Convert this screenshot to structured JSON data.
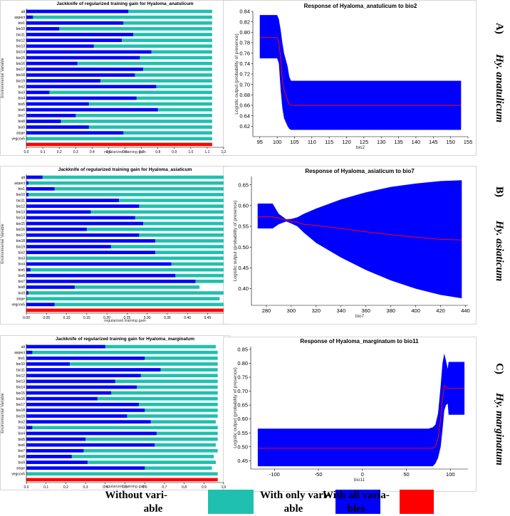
{
  "chart_data": [
    {
      "type": "bar",
      "title": "Jackknife of regularized training gain for Hyaloma_anatulicum",
      "xlabel": "regularized training gain",
      "ylabel": "Environmental Variable",
      "xlim": [
        0,
        1.2
      ],
      "xticks": [
        "0.0",
        "0.1",
        "0.2",
        "0.3",
        "0.4",
        "0.5",
        "0.6",
        "0.7",
        "0.8",
        "0.9",
        "1.0",
        "1.1",
        "1.2"
      ],
      "categories": [
        "alt",
        "aspect",
        "bio1",
        "bio10",
        "bio11",
        "bio12",
        "bio13",
        "bio14",
        "bio15",
        "bio16",
        "bio17",
        "bio18",
        "bio19",
        "bio2",
        "bio3",
        "bio4",
        "bio5",
        "bio6",
        "bio7",
        "bio8",
        "bio9",
        "slope",
        "vegcov5"
      ],
      "series": [
        {
          "name": "Without variable",
          "color": "#20c0b0",
          "values": [
            1.13,
            1.13,
            1.13,
            1.13,
            1.13,
            1.13,
            1.13,
            1.13,
            1.13,
            1.13,
            1.13,
            1.13,
            1.13,
            1.13,
            1.13,
            1.13,
            1.13,
            1.13,
            1.13,
            1.13,
            1.13,
            1.13,
            1.13
          ]
        },
        {
          "name": "With only variable",
          "color": "#0000ff",
          "values": [
            0.62,
            0.04,
            0.59,
            0.2,
            0.65,
            0.58,
            0.41,
            0.76,
            0.69,
            0.31,
            0.71,
            0.66,
            0.45,
            0.79,
            0.14,
            0.67,
            0.38,
            0.8,
            0.3,
            0.21,
            0.38,
            0.59,
            0.0
          ]
        },
        {
          "name": "With all variables",
          "color": "#ff0000",
          "value": 1.13
        }
      ]
    },
    {
      "type": "line",
      "title": "Response of Hyaloma_anatulicum to bio2",
      "xlabel": "bio2",
      "ylabel": "Logistic output (probability of presence)",
      "xlim": [
        93,
        155
      ],
      "ylim": [
        0.6,
        0.84
      ],
      "xticks": [
        "95",
        "100",
        "105",
        "110",
        "115",
        "120",
        "125",
        "130",
        "135",
        "140",
        "145",
        "150",
        "155"
      ],
      "yticks": [
        "0.62",
        "0.64",
        "0.66",
        "0.68",
        "0.70",
        "0.72",
        "0.74",
        "0.76",
        "0.78",
        "0.80",
        "0.82",
        "0.84"
      ],
      "x": [
        95,
        97,
        99,
        100,
        100.5,
        101,
        101.5,
        102,
        103,
        103.5,
        104,
        110,
        120,
        130,
        140,
        150,
        153
      ],
      "mean": [
        0.79,
        0.79,
        0.79,
        0.79,
        0.78,
        0.75,
        0.71,
        0.69,
        0.67,
        0.662,
        0.66,
        0.66,
        0.66,
        0.66,
        0.66,
        0.66,
        0.66
      ],
      "upper": [
        0.833,
        0.833,
        0.833,
        0.833,
        0.825,
        0.805,
        0.78,
        0.76,
        0.735,
        0.715,
        0.707,
        0.707,
        0.707,
        0.707,
        0.707,
        0.707,
        0.707
      ],
      "lower": [
        0.75,
        0.75,
        0.75,
        0.75,
        0.74,
        0.69,
        0.655,
        0.635,
        0.62,
        0.615,
        0.613,
        0.613,
        0.613,
        0.613,
        0.613,
        0.613,
        0.613
      ]
    },
    {
      "type": "bar",
      "title": "Jackknife of regularized training gain for Hyaloma_asiaticum",
      "xlabel": "regularized training gain",
      "ylabel": "Environmental Variable",
      "xlim": [
        0,
        0.49
      ],
      "xticks": [
        "0.00",
        "0.05",
        "0.10",
        "0.15",
        "0.20",
        "0.25",
        "0.30",
        "0.35",
        "0.40",
        "0.45"
      ],
      "categories": [
        "alt",
        "aspect",
        "bio1",
        "bio10",
        "bio11",
        "bio12",
        "bio13",
        "bio14",
        "bio15",
        "bio16",
        "bio17",
        "bio18",
        "bio19",
        "bio2",
        "bio3",
        "bio4",
        "bio5",
        "bio6",
        "bio7",
        "bio8",
        "bio9",
        "slope",
        "vegcov5"
      ],
      "series": [
        {
          "name": "Without variable",
          "color": "#20c0b0",
          "values": [
            0.49,
            0.49,
            0.49,
            0.49,
            0.49,
            0.49,
            0.49,
            0.49,
            0.49,
            0.49,
            0.49,
            0.49,
            0.49,
            0.49,
            0.49,
            0.49,
            0.49,
            0.49,
            0.49,
            0.43,
            0.49,
            0.48,
            0.49
          ]
        },
        {
          "name": "With only variable",
          "color": "#0000ff",
          "values": [
            0.04,
            0.005,
            0.07,
            0.005,
            0.23,
            0.28,
            0.16,
            0.27,
            0.29,
            0.15,
            0.28,
            0.32,
            0.21,
            0.32,
            0.0,
            0.36,
            0.01,
            0.37,
            0.42,
            0.12,
            0.005,
            0.0,
            0.07
          ]
        },
        {
          "name": "With all variables",
          "color": "#ff0000",
          "value": 0.49
        }
      ]
    },
    {
      "type": "line",
      "title": "Response of Hyaloma_asiaticum to bio7",
      "xlabel": "bio7",
      "ylabel": "Logistic output (probability of presence)",
      "xlim": [
        268,
        442
      ],
      "ylim": [
        0.36,
        0.67
      ],
      "xticks": [
        "280",
        "300",
        "320",
        "340",
        "360",
        "380",
        "400",
        "420",
        "440"
      ],
      "yticks": [
        "0.40",
        "0.45",
        "0.50",
        "0.55",
        "0.60",
        "0.65"
      ],
      "x": [
        273,
        285,
        290,
        296,
        300,
        305,
        310,
        320,
        340,
        360,
        380,
        400,
        420,
        437
      ],
      "mean": [
        0.573,
        0.573,
        0.57,
        0.565,
        0.562,
        0.56,
        0.555,
        0.552,
        0.545,
        0.537,
        0.53,
        0.524,
        0.519,
        0.517
      ],
      "upper": [
        0.605,
        0.605,
        0.58,
        0.567,
        0.568,
        0.572,
        0.58,
        0.593,
        0.615,
        0.632,
        0.645,
        0.653,
        0.659,
        0.661
      ],
      "lower": [
        0.545,
        0.545,
        0.555,
        0.562,
        0.557,
        0.55,
        0.535,
        0.51,
        0.475,
        0.445,
        0.42,
        0.4,
        0.385,
        0.377
      ]
    },
    {
      "type": "bar",
      "title": "Jackknife of regularized training gain for Hyaloma_marginatum",
      "xlabel": "regularized training gain",
      "ylabel": "Environmental Variable",
      "xlim": [
        0,
        1.0
      ],
      "xticks": [
        "0.0",
        "0.1",
        "0.2",
        "0.3",
        "0.4",
        "0.5",
        "0.6",
        "0.7",
        "0.8",
        "0.9",
        "1.0"
      ],
      "categories": [
        "alt",
        "aspect",
        "bio1",
        "bio10",
        "bio11",
        "bio12",
        "bio13",
        "bio14",
        "bio15",
        "bio16",
        "bio17",
        "bio18",
        "bio19",
        "bio2",
        "bio3",
        "bio4",
        "bio5",
        "bio6",
        "bio7",
        "bio8",
        "bio9",
        "slope",
        "vegcov5"
      ],
      "series": [
        {
          "name": "Without variable",
          "color": "#20c0b0",
          "values": [
            0.96,
            0.97,
            0.97,
            0.97,
            0.97,
            0.97,
            0.97,
            0.97,
            0.97,
            0.97,
            0.97,
            0.97,
            0.97,
            0.96,
            0.97,
            0.97,
            0.97,
            0.96,
            0.97,
            0.95,
            0.96,
            0.94,
            0.97
          ]
        },
        {
          "name": "With only variable",
          "color": "#0000ff",
          "values": [
            0.4,
            0.03,
            0.6,
            0.22,
            0.68,
            0.58,
            0.45,
            0.56,
            0.43,
            0.36,
            0.57,
            0.6,
            0.51,
            0.63,
            0.03,
            0.66,
            0.3,
            0.65,
            0.29,
            0.23,
            0.31,
            0.6,
            0.0
          ]
        },
        {
          "name": "With all variables",
          "color": "#ff0000",
          "value": 0.97
        }
      ]
    },
    {
      "type": "line",
      "title": "Response of Hyaloma_marginatum to bio11",
      "xlabel": "bio11",
      "ylabel": "Logistic output (probability of presence)",
      "xlim": [
        -127,
        120
      ],
      "ylim": [
        0.42,
        0.86
      ],
      "xticks": [
        "-100",
        "-50",
        "0",
        "50",
        "100"
      ],
      "yticks": [
        "0.45",
        "0.50",
        "0.55",
        "0.60",
        "0.65",
        "0.70",
        "0.75",
        "0.80",
        "0.85"
      ],
      "x": [
        -119,
        60,
        75,
        80,
        83,
        86,
        89,
        91,
        93,
        95,
        97,
        98,
        100,
        110,
        116
      ],
      "mean": [
        0.495,
        0.495,
        0.495,
        0.495,
        0.5,
        0.53,
        0.6,
        0.67,
        0.72,
        0.715,
        0.71,
        0.71,
        0.71,
        0.71,
        0.71
      ],
      "upper": [
        0.565,
        0.565,
        0.565,
        0.57,
        0.58,
        0.62,
        0.72,
        0.8,
        0.835,
        0.81,
        0.78,
        0.805,
        0.805,
        0.805,
        0.805
      ],
      "lower": [
        0.43,
        0.43,
        0.43,
        0.43,
        0.44,
        0.46,
        0.5,
        0.56,
        0.63,
        0.65,
        0.655,
        0.615,
        0.615,
        0.615,
        0.615
      ]
    }
  ],
  "panels": [
    {
      "letter": "A)",
      "species": "Hy. anatulicum"
    },
    {
      "letter": "B)",
      "species": "Hy. asiaticum"
    },
    {
      "letter": "C)",
      "species": "Hy. marginatum"
    }
  ],
  "legend": [
    {
      "label": "Without variable",
      "line1": "Without vari-",
      "line2": "able",
      "color": "#20c0b0"
    },
    {
      "label": "With only variable",
      "line1": "With only vari-",
      "line2": "able",
      "color": "#0000ff"
    },
    {
      "label": "With all variables",
      "line1": "With all varia-",
      "line2": "bles",
      "color": "#ff0000"
    }
  ]
}
